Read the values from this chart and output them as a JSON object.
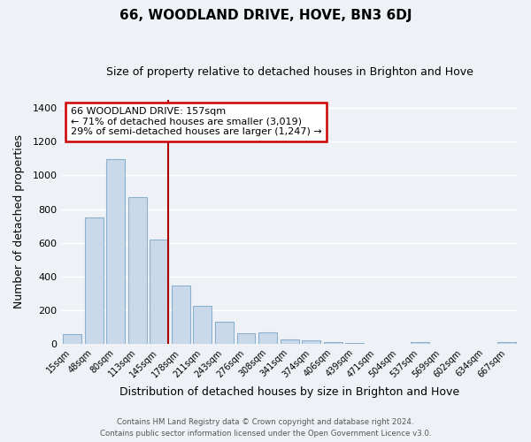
{
  "title": "66, WOODLAND DRIVE, HOVE, BN3 6DJ",
  "subtitle": "Size of property relative to detached houses in Brighton and Hove",
  "xlabel": "Distribution of detached houses by size in Brighton and Hove",
  "ylabel": "Number of detached properties",
  "bar_labels": [
    "15sqm",
    "48sqm",
    "80sqm",
    "113sqm",
    "145sqm",
    "178sqm",
    "211sqm",
    "243sqm",
    "276sqm",
    "308sqm",
    "341sqm",
    "374sqm",
    "406sqm",
    "439sqm",
    "471sqm",
    "504sqm",
    "537sqm",
    "569sqm",
    "602sqm",
    "634sqm",
    "667sqm"
  ],
  "bar_values": [
    55,
    750,
    1095,
    870,
    620,
    345,
    225,
    130,
    65,
    70,
    25,
    20,
    10,
    5,
    0,
    0,
    10,
    0,
    0,
    0,
    10
  ],
  "bar_color": "#c9d9ea",
  "bar_edge_color": "#8ab0cc",
  "marker_color": "#aa0000",
  "annotation_line1": "66 WOODLAND DRIVE: 157sqm",
  "annotation_line2": "← 71% of detached houses are smaller (3,019)",
  "annotation_line3": "29% of semi-detached houses are larger (1,247) →",
  "annotation_box_color": "#ffffff",
  "annotation_box_edge": "#cc0000",
  "ylim": [
    0,
    1450
  ],
  "yticks": [
    0,
    200,
    400,
    600,
    800,
    1000,
    1200,
    1400
  ],
  "footer1": "Contains HM Land Registry data © Crown copyright and database right 2024.",
  "footer2": "Contains public sector information licensed under the Open Government Licence v3.0.",
  "background_color": "#eef2f7",
  "grid_color": "#ffffff",
  "fig_width": 6.0,
  "fig_height": 5.0
}
